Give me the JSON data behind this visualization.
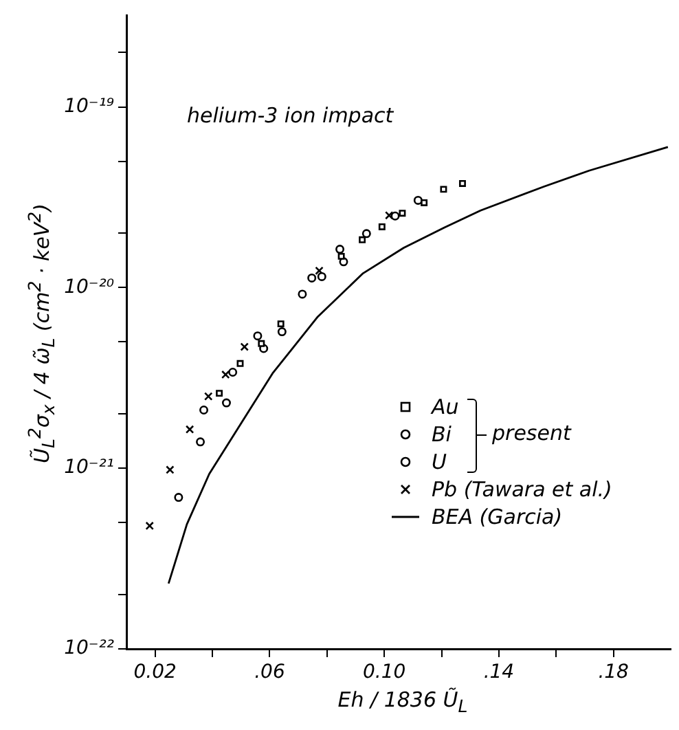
{
  "chart_data": {
    "type": "scatter",
    "xlabel": "Eh / 1836 Ũ$_{L}$",
    "ylabel": "Ũ$_{L}$$^{2}$σ$_{x}$ / 4 ω̃$_{L}$   (cm$^{2}$ · keV$^{2}$)",
    "log": "y",
    "legend": "right",
    "legend_title": null,
    "annotations": [
      "helium-3 ion impact",
      "present"
    ],
    "xlim": [
      0.01,
      0.2
    ],
    "xticks": [
      {
        "value": 0.02,
        "label": "0.02"
      },
      {
        "value": 0.04,
        "label": null
      },
      {
        "value": 0.06,
        "label": ".06"
      },
      {
        "value": 0.08,
        "label": null
      },
      {
        "value": 0.1,
        "label": "0.10"
      },
      {
        "value": 0.12,
        "label": null
      },
      {
        "value": 0.14,
        "label": ".14"
      },
      {
        "value": 0.16,
        "label": null
      },
      {
        "value": 0.18,
        "label": ".18"
      }
    ],
    "ylim": [
      1e-22,
      3.2e-19
    ],
    "yticks": [
      {
        "value": 1e-22,
        "label": "10⁻²²"
      },
      {
        "value": 2e-22,
        "label": null
      },
      {
        "value": 5e-22,
        "label": null
      },
      {
        "value": 1e-21,
        "label": "10⁻²¹"
      },
      {
        "value": 2e-21,
        "label": null
      },
      {
        "value": 5e-21,
        "label": null
      },
      {
        "value": 1e-20,
        "label": "10⁻²⁰"
      },
      {
        "value": 2e-20,
        "label": null
      },
      {
        "value": 5e-20,
        "label": null
      },
      {
        "value": 1e-19,
        "label": "10⁻¹⁹"
      },
      {
        "value": 2e-19,
        "label": null
      }
    ],
    "series": [
      {
        "name": "Au",
        "color": "#000000",
        "marker": "square",
        "x": [
          0.0424,
          0.0497,
          0.0571,
          0.0639,
          0.085,
          0.0923,
          0.0992,
          0.1063,
          0.1139,
          0.1207,
          0.1273
        ],
        "values": [
          2.6e-21,
          3.8e-21,
          4.9e-21,
          6.3e-21,
          1.49e-20,
          1.84e-20,
          2.17e-20,
          2.58e-20,
          2.95e-20,
          3.5e-20,
          3.77e-20
        ]
      },
      {
        "name": "Bi",
        "color": "#000000",
        "marker": "circle",
        "x": [
          0.037,
          0.0471,
          0.0558,
          0.0747,
          0.0845,
          0.0938,
          0.1038,
          0.1118
        ],
        "values": [
          2.1e-21,
          3.4e-21,
          5.4e-21,
          1.13e-20,
          1.63e-20,
          1.99e-20,
          2.49e-20,
          3.04e-20
        ]
      },
      {
        "name": "U",
        "color": "#000000",
        "marker": "circle",
        "x": [
          0.0282,
          0.0358,
          0.0449,
          0.0579,
          0.0643,
          0.0714,
          0.0782,
          0.0858
        ],
        "values": [
          6.9e-22,
          1.4e-21,
          2.3e-21,
          4.6e-21,
          5.7e-21,
          9.2e-21,
          1.15e-20,
          1.39e-20
        ]
      },
      {
        "name": "Pb (Tawara et al.)",
        "color": "#000000",
        "marker": "cross",
        "x": [
          0.0181,
          0.0252,
          0.0321,
          0.0386,
          0.0446,
          0.0512,
          0.0773,
          0.1017
        ],
        "values": [
          4.8e-22,
          9.8e-22,
          1.64e-21,
          2.5e-21,
          3.3e-21,
          4.7e-21,
          1.24e-20,
          2.51e-20
        ]
      },
      {
        "name": "BEA (Garcia)",
        "type": "line",
        "color": "#000000",
        "marker": "none",
        "line_style": "solid",
        "x": [
          0.0247,
          0.0311,
          0.0389,
          0.05,
          0.061,
          0.0768,
          0.0926,
          0.1068,
          0.121,
          0.1336,
          0.1557,
          0.1715,
          0.199
        ],
        "values": [
          2.3e-22,
          4.9e-22,
          9.3e-22,
          1.77e-21,
          3.35e-21,
          6.9e-21,
          1.2e-20,
          1.66e-20,
          2.15e-20,
          2.67e-20,
          3.62e-20,
          4.44e-20,
          6e-20
        ]
      }
    ]
  }
}
